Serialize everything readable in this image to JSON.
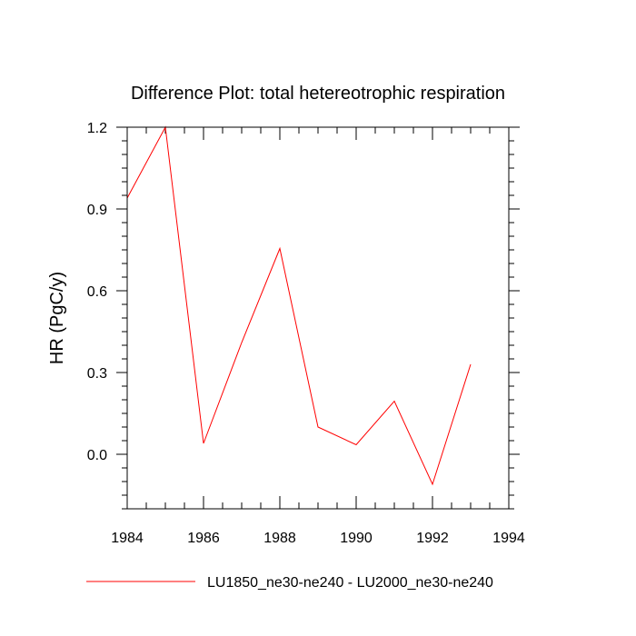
{
  "chart_data": {
    "type": "line",
    "title": "Difference Plot: total hetereotrophic respiration",
    "xlabel": "",
    "ylabel": "HR  (PgC/y)",
    "xlim": [
      1984,
      1994
    ],
    "ylim": [
      -0.2,
      1.2
    ],
    "x_ticks": [
      1984,
      1986,
      1988,
      1990,
      1992,
      1994
    ],
    "y_ticks": [
      0.0,
      0.3,
      0.6,
      0.9,
      1.2
    ],
    "x_tick_labels": [
      "1984",
      "1986",
      "1988",
      "1990",
      "1992",
      "1994"
    ],
    "y_tick_labels": [
      "0.0",
      "0.3",
      "0.6",
      "0.9",
      "1.2"
    ],
    "legend_placement": "bottom",
    "grid": false,
    "series": [
      {
        "name": "LU1850_ne30-ne240 - LU2000_ne30-ne240",
        "color": "#ff0000",
        "x": [
          1984,
          1985,
          1986,
          1987,
          1988,
          1989,
          1990,
          1991,
          1992,
          1993
        ],
        "y": [
          0.94,
          1.2,
          0.04,
          0.41,
          0.755,
          0.1,
          0.035,
          0.195,
          -0.11,
          0.33
        ]
      }
    ]
  }
}
